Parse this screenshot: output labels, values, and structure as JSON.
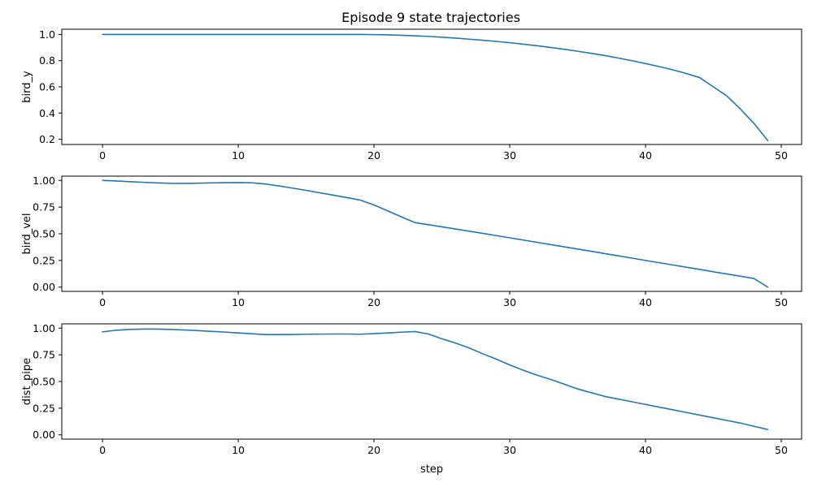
{
  "figure": {
    "title": "Episode 9 state trajectories",
    "line_color": "#1f77b4"
  },
  "chart_data": [
    {
      "type": "line",
      "title": "Episode 9 state trajectories",
      "xlabel": "",
      "ylabel": "bird_y",
      "xlim": [
        -3,
        51.5
      ],
      "ylim": [
        0.16,
        1.04
      ],
      "xticks": [
        0,
        10,
        20,
        30,
        40,
        50
      ],
      "yticks": [
        0.2,
        0.4,
        0.6,
        0.8,
        1.0
      ],
      "ytick_labels": [
        "0.2",
        "0.4",
        "0.6",
        "0.8",
        "1.0"
      ],
      "grid": false,
      "series": [
        {
          "x": [
            0,
            1,
            2,
            3,
            4,
            5,
            6,
            7,
            8,
            9,
            10,
            11,
            12,
            13,
            14,
            15,
            16,
            17,
            18,
            19,
            20,
            21,
            22,
            23,
            24,
            25,
            26,
            27,
            28,
            29,
            30,
            31,
            32,
            33,
            34,
            35,
            36,
            37,
            38,
            39,
            40,
            41,
            42,
            43,
            44,
            45,
            46,
            47,
            48,
            49
          ],
          "values": [
            1.0,
            1.0,
            1.0,
            1.0,
            1.0,
            1.0,
            1.0,
            1.0,
            1.0,
            1.0,
            1.0,
            1.0,
            1.0,
            1.0,
            1.0,
            1.0,
            1.0,
            1.0,
            1.0,
            1.0,
            0.999,
            0.997,
            0.994,
            0.99,
            0.985,
            0.979,
            0.972,
            0.964,
            0.956,
            0.947,
            0.937,
            0.926,
            0.914,
            0.901,
            0.887,
            0.872,
            0.856,
            0.839,
            0.82,
            0.8,
            0.778,
            0.755,
            0.73,
            0.702,
            0.67,
            0.6,
            0.53,
            0.43,
            0.32,
            0.19
          ]
        }
      ]
    },
    {
      "type": "line",
      "xlabel": "",
      "ylabel": "bird_vel",
      "xlim": [
        -3,
        51.5
      ],
      "ylim": [
        -0.04,
        1.04
      ],
      "xticks": [
        0,
        10,
        20,
        30,
        40,
        50
      ],
      "yticks": [
        0.0,
        0.25,
        0.5,
        0.75,
        1.0
      ],
      "ytick_labels": [
        "0.00",
        "0.25",
        "0.50",
        "0.75",
        "1.00"
      ],
      "grid": false,
      "series": [
        {
          "x": [
            0,
            1,
            2,
            3,
            4,
            5,
            6,
            7,
            8,
            9,
            10,
            11,
            12,
            13,
            14,
            15,
            16,
            17,
            18,
            19,
            20,
            21,
            22,
            23,
            24,
            25,
            26,
            27,
            28,
            29,
            30,
            31,
            32,
            33,
            34,
            35,
            36,
            37,
            38,
            39,
            40,
            41,
            42,
            43,
            44,
            45,
            46,
            47,
            48,
            49
          ],
          "values": [
            1.0,
            0.995,
            0.988,
            0.982,
            0.977,
            0.973,
            0.972,
            0.974,
            0.977,
            0.979,
            0.98,
            0.978,
            0.966,
            0.948,
            0.928,
            0.907,
            0.884,
            0.862,
            0.839,
            0.815,
            0.77,
            0.715,
            0.66,
            0.605,
            0.585,
            0.565,
            0.545,
            0.524,
            0.504,
            0.483,
            0.462,
            0.441,
            0.42,
            0.399,
            0.378,
            0.357,
            0.336,
            0.314,
            0.293,
            0.272,
            0.25,
            0.229,
            0.208,
            0.187,
            0.166,
            0.144,
            0.123,
            0.102,
            0.08,
            0.0
          ]
        }
      ]
    },
    {
      "type": "line",
      "xlabel": "step",
      "ylabel": "dist_pipe",
      "xlim": [
        -3,
        51.5
      ],
      "ylim": [
        -0.04,
        1.04
      ],
      "xticks": [
        0,
        10,
        20,
        30,
        40,
        50
      ],
      "yticks": [
        0.0,
        0.25,
        0.5,
        0.75,
        1.0
      ],
      "ytick_labels": [
        "0.00",
        "0.25",
        "0.50",
        "0.75",
        "1.00"
      ],
      "grid": false,
      "series": [
        {
          "x": [
            0,
            1,
            2,
            3,
            4,
            5,
            6,
            7,
            8,
            9,
            10,
            11,
            12,
            13,
            14,
            15,
            16,
            17,
            18,
            19,
            20,
            21,
            22,
            23,
            24,
            25,
            26,
            27,
            28,
            29,
            30,
            31,
            32,
            33,
            34,
            35,
            36,
            37,
            38,
            39,
            40,
            41,
            42,
            43,
            44,
            45,
            46,
            47,
            48,
            49
          ],
          "values": [
            0.965,
            0.98,
            0.988,
            0.991,
            0.991,
            0.988,
            0.983,
            0.977,
            0.97,
            0.963,
            0.955,
            0.947,
            0.94,
            0.94,
            0.941,
            0.943,
            0.944,
            0.945,
            0.945,
            0.943,
            0.948,
            0.955,
            0.962,
            0.968,
            0.945,
            0.9,
            0.86,
            0.815,
            0.76,
            0.71,
            0.655,
            0.605,
            0.56,
            0.52,
            0.475,
            0.43,
            0.395,
            0.36,
            0.335,
            0.31,
            0.285,
            0.26,
            0.235,
            0.21,
            0.185,
            0.16,
            0.135,
            0.11,
            0.08,
            0.05
          ]
        }
      ]
    }
  ]
}
